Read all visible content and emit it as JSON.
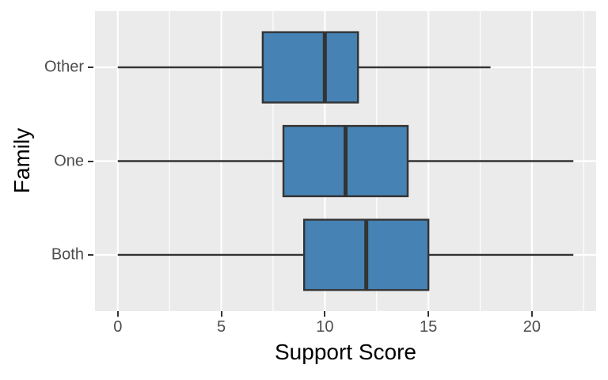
{
  "figure": {
    "background": "#FFFFFF",
    "panel_background": "#EBEBEB",
    "grid_color": "#FFFFFF",
    "tick_mark_color": "#333333",
    "tick_label_color": "#4D4D4D",
    "axis_title_color": "#000000"
  },
  "chart_data": {
    "type": "boxplot",
    "orientation": "horizontal",
    "title": "",
    "xlabel": "Support Score",
    "ylabel": "Family",
    "categories": [
      "Other",
      "One",
      "Both"
    ],
    "series": [
      {
        "name": "Other",
        "min": 0,
        "q1": 7,
        "median": 10,
        "q3": 11.6,
        "max": 18
      },
      {
        "name": "One",
        "min": 0,
        "q1": 8,
        "median": 11,
        "q3": 14,
        "max": 22
      },
      {
        "name": "Both",
        "min": 0,
        "q1": 9,
        "median": 12,
        "q3": 15,
        "max": 22
      }
    ],
    "xlim": [
      -1.1,
      23.1
    ],
    "x_major_ticks": [
      0,
      5,
      10,
      15,
      20
    ],
    "x_minor_gridlines": [
      2.5,
      7.5,
      12.5,
      17.5,
      22.5
    ],
    "grid": "white major + minor vertical, major horizontal at categories",
    "legend": "none",
    "box_fill": "#4682B4",
    "box_stroke": "#333333"
  }
}
